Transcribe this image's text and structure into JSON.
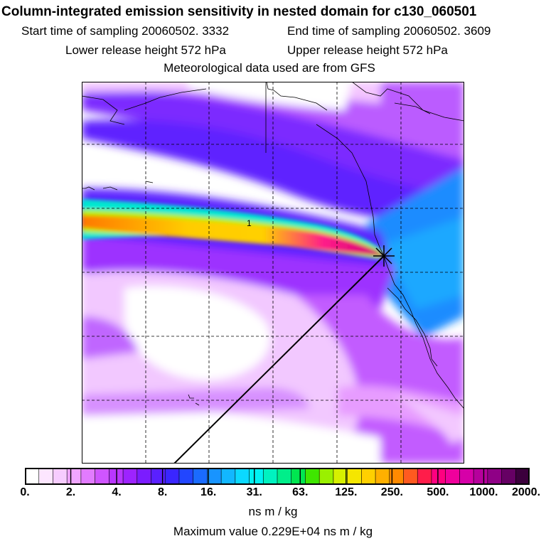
{
  "header": {
    "title": "Column-integrated emission sensitivity in nested domain for c130_060501",
    "start_sampling": "Start time of sampling 20060502.  3332",
    "end_sampling": "End time of sampling 20060502.  3609",
    "lower_release": "Lower release height  572 hPa",
    "upper_release": "Upper release height  572 hPa",
    "met_data": "Meteorological data used are from GFS"
  },
  "chart_data": {
    "type": "heatmap",
    "title": "Column-integrated emission sensitivity in nested domain for c130_060501",
    "colorbar": {
      "units": "ns m / kg",
      "tick_labels": [
        "0.",
        "2.",
        "4.",
        "8.",
        "16.",
        "31.",
        "63.",
        "125.",
        "250.",
        "500.",
        "1000.",
        "2000."
      ],
      "tick_values": [
        0,
        2,
        4,
        8,
        16,
        31,
        63,
        125,
        250,
        500,
        1000,
        2000
      ],
      "colors": [
        "#ffffff",
        "#fde6ff",
        "#f7ccff",
        "#f0a6ff",
        "#e27bff",
        "#cf55ff",
        "#b936ff",
        "#9d23ff",
        "#7b1cff",
        "#5a20ff",
        "#3a26ff",
        "#2246ff",
        "#1a6bff",
        "#1894ff",
        "#12b7ff",
        "#0bd9ff",
        "#00f2f2",
        "#00f2c0",
        "#00ee8a",
        "#00e650",
        "#3fe600",
        "#9af000",
        "#d6f000",
        "#f5e600",
        "#ffd000",
        "#ffb000",
        "#ff8a00",
        "#ff5a20",
        "#ff1d4a",
        "#ff0080",
        "#f0009c",
        "#d600a8",
        "#b6009c",
        "#8f0086",
        "#660064",
        "#3b003c"
      ]
    },
    "plume_label": "1",
    "max_value_text": "Maximum value  0.229E+04 ns m / kg",
    "grid": true
  }
}
